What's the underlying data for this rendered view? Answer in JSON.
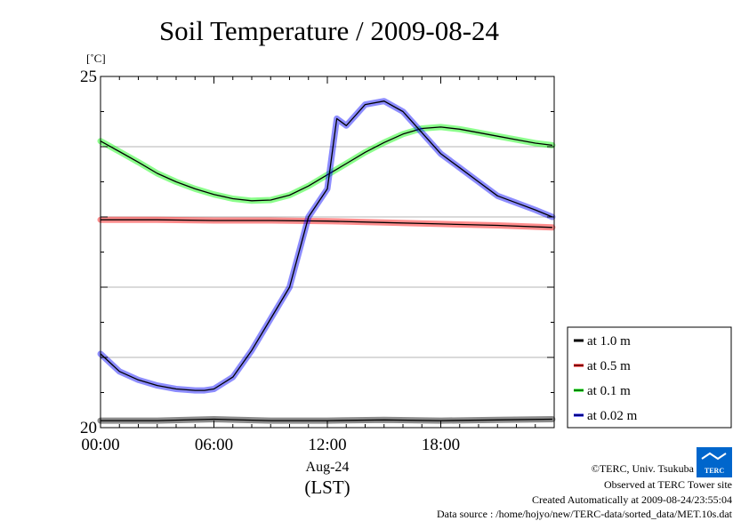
{
  "chart_data": {
    "type": "line",
    "title": "Soil Temperature / 2009-08-24",
    "y_unit": "[˚C]",
    "ylim": [
      20,
      25
    ],
    "y_ticks": [
      "25",
      "20"
    ],
    "y_grid": [
      21,
      22,
      23,
      24
    ],
    "xlim": [
      0,
      24
    ],
    "x_ticks": [
      {
        "label": "00:00",
        "hour": 0
      },
      {
        "label": "06:00",
        "hour": 6
      },
      {
        "label": "12:00",
        "hour": 12
      },
      {
        "label": "18:00",
        "hour": 18
      }
    ],
    "x_sublabel": "Aug-24",
    "x_unit": "(LST)",
    "grid": true,
    "legend_position": "right",
    "series": [
      {
        "name": "at 1.0 m",
        "color": "#000000",
        "x": [
          0,
          3,
          6,
          9,
          12,
          15,
          18,
          21,
          23.9
        ],
        "y": [
          20.1,
          20.1,
          20.12,
          20.1,
          20.1,
          20.11,
          20.1,
          20.11,
          20.12
        ]
      },
      {
        "name": "at 0.5 m",
        "color": "#ff0000",
        "x": [
          0,
          3,
          6,
          9,
          12,
          15,
          18,
          21,
          23.9
        ],
        "y": [
          22.96,
          22.96,
          22.95,
          22.95,
          22.94,
          22.92,
          22.9,
          22.88,
          22.85
        ]
      },
      {
        "name": "at 0.1 m",
        "color": "#00ff00",
        "x": [
          0,
          1,
          2,
          3,
          4,
          5,
          6,
          7,
          8,
          9,
          10,
          11,
          12,
          13,
          14,
          15,
          16,
          17,
          18,
          19,
          20,
          21,
          22,
          23,
          23.9
        ],
        "y": [
          24.08,
          23.93,
          23.78,
          23.62,
          23.5,
          23.4,
          23.32,
          23.26,
          23.23,
          23.24,
          23.31,
          23.44,
          23.6,
          23.76,
          23.92,
          24.06,
          24.18,
          24.26,
          24.28,
          24.25,
          24.2,
          24.15,
          24.1,
          24.05,
          24.02
        ]
      },
      {
        "name": "at 0.02 m",
        "color": "#0000ff",
        "x": [
          0,
          1,
          2,
          3,
          4,
          5,
          5.5,
          6,
          7,
          8,
          9,
          10,
          11,
          12,
          12.5,
          13,
          13.5,
          14,
          15,
          16,
          17,
          18,
          19,
          20,
          21,
          22,
          23,
          23.9
        ],
        "y": [
          21.05,
          20.8,
          20.68,
          20.6,
          20.55,
          20.53,
          20.53,
          20.55,
          20.72,
          21.1,
          21.55,
          22.0,
          23.0,
          23.4,
          24.4,
          24.3,
          24.45,
          24.6,
          24.65,
          24.5,
          24.2,
          23.9,
          23.7,
          23.5,
          23.3,
          23.2,
          23.1,
          23.0
        ]
      }
    ]
  },
  "credits": {
    "copyright": "©TERC, Univ. Tsukuba",
    "observed": "Observed at TERC Tower site",
    "created": "Created Automatically at 2009-08-24/23:55:04",
    "source": "Data source : /home/hojyo/new/TERC-data/sorted_data/MET.10s.dat"
  },
  "logo": {
    "text": "TERC",
    "color": "#0066cc"
  }
}
